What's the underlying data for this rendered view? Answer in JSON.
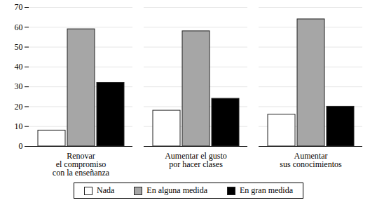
{
  "chart_data": {
    "type": "bar",
    "categories": [
      "Renovar\nel compromiso\ncon la enseñanza",
      "Aumentar el gusto\npor hacer clases",
      "Aumentar\nsus conocimientos"
    ],
    "series": [
      {
        "name": "Nada",
        "color": "#ffffff",
        "values": [
          8,
          18,
          16
        ]
      },
      {
        "name": "En alguna medida",
        "color": "#a6a6a6",
        "values": [
          59,
          58,
          64
        ]
      },
      {
        "name": "En gran medida",
        "color": "#000000",
        "values": [
          32,
          24,
          20
        ]
      }
    ],
    "ylim": [
      0,
      70
    ],
    "yticks": [
      0,
      10,
      20,
      30,
      40,
      50,
      60,
      70
    ],
    "grid": true,
    "legend": "bottom"
  }
}
